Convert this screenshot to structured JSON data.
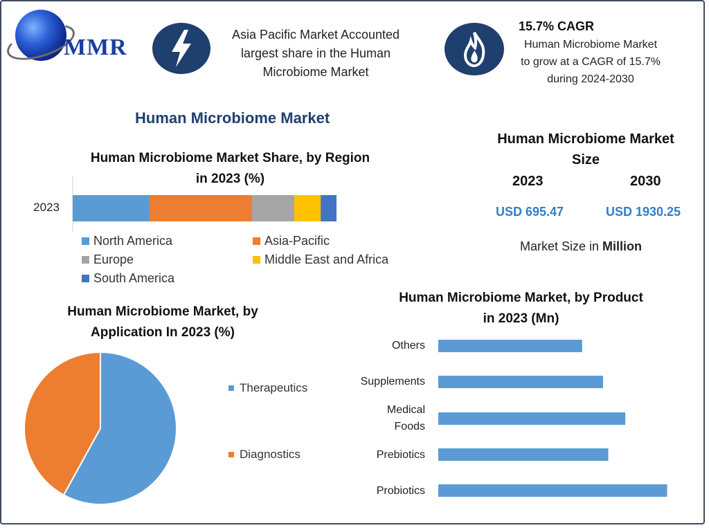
{
  "brand": {
    "logo_text": "MMR"
  },
  "callouts": {
    "left": {
      "lines": [
        "Asia Pacific Market Accounted",
        "largest share in the Human",
        "Microbiome Market"
      ],
      "icon": "lightning-icon"
    },
    "right": {
      "title": "15.7% CAGR",
      "lines": [
        "Human Microbiome Market",
        "to grow at a CAGR of 15.7%",
        "during 2024-2030"
      ],
      "icon": "flame-icon"
    }
  },
  "main_title": "Human Microbiome Market",
  "market_size": {
    "title_lines": [
      "Human Microbiome Market",
      "Size"
    ],
    "years": [
      "2023",
      "2030"
    ],
    "values": [
      "USD 695.47",
      "USD 1930.25"
    ],
    "note_prefix": "Market Size in ",
    "note_bold": "Million"
  },
  "colors": {
    "north_america": "#5b9bd5",
    "asia_pacific": "#ed7d31",
    "europe": "#a5a5a5",
    "mea": "#ffc000",
    "south_america": "#4472c4",
    "title_blue": "#1f3f6e",
    "usd_blue": "#2f7fc8"
  },
  "chart_data": [
    {
      "type": "bar",
      "orientation": "horizontal-stacked",
      "title": "Human Microbiome Market Share, by Region in 2023 (%)",
      "title_lines": [
        "Human Microbiome Market Share, by Region",
        "in 2023 (%)"
      ],
      "categories": [
        "2023"
      ],
      "series": [
        {
          "name": "North America",
          "values": [
            29
          ],
          "color": "#5b9bd5"
        },
        {
          "name": "Asia-Pacific",
          "values": [
            39
          ],
          "color": "#ed7d31"
        },
        {
          "name": "Europe",
          "values": [
            16
          ],
          "color": "#a5a5a5"
        },
        {
          "name": "Middle East and Africa",
          "values": [
            10
          ],
          "color": "#ffc000"
        },
        {
          "name": "South America",
          "values": [
            6
          ],
          "color": "#4472c4"
        }
      ],
      "xlim": [
        0,
        100
      ],
      "legend": "bottom"
    },
    {
      "type": "pie",
      "title": "Human Microbiome Market, by Application In 2023 (%)",
      "title_lines": [
        "Human Microbiome Market, by",
        "Application In 2023 (%)"
      ],
      "categories": [
        "Therapeutics",
        "Diagnostics"
      ],
      "values": [
        58,
        42
      ],
      "colors": [
        "#5b9bd5",
        "#ed7d31"
      ],
      "legend": "right"
    },
    {
      "type": "bar",
      "orientation": "horizontal",
      "title": "Human Microbiome Market, by Product in 2023 (Mn)",
      "title_lines": [
        "Human Microbiome Market, by Product",
        "in 2023 (Mn)"
      ],
      "categories": [
        "Others",
        "Supplements",
        "Medical Foods",
        "Prebiotics",
        "Probiotics"
      ],
      "category_lines": [
        [
          "Others"
        ],
        [
          "Supplements"
        ],
        [
          "Medical",
          "Foods"
        ],
        [
          "Prebiotics"
        ],
        [
          "Probiotics"
        ]
      ],
      "values": [
        110,
        126,
        143,
        130,
        175
      ],
      "xlim": [
        0,
        180
      ],
      "color": "#5b9bd5"
    }
  ]
}
